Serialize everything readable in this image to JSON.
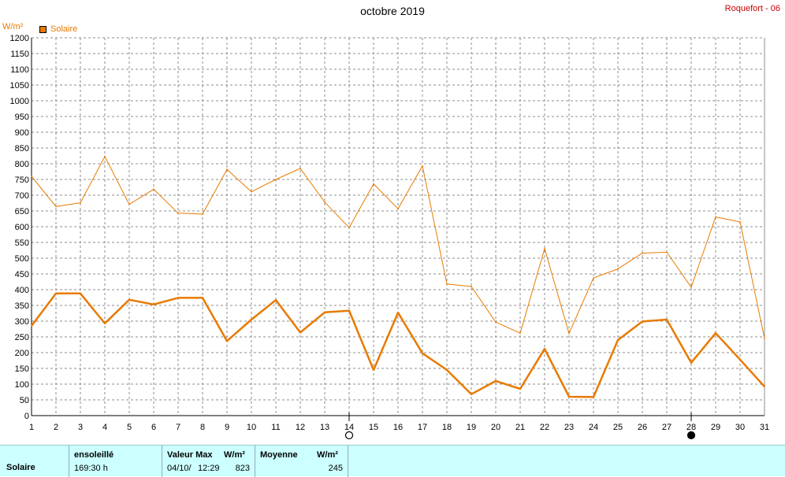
{
  "header": {
    "title": "octobre 2019",
    "station": "Roquefort - 06",
    "unit": "W/m²",
    "legend_label": "Solaire",
    "legend_color": "#e87a00"
  },
  "chart_data": {
    "type": "line",
    "title": "octobre 2019",
    "ylabel": "W/m²",
    "xlabel": "",
    "x": [
      1,
      2,
      3,
      4,
      5,
      6,
      7,
      8,
      9,
      10,
      11,
      12,
      13,
      14,
      15,
      16,
      17,
      18,
      19,
      20,
      21,
      22,
      23,
      24,
      25,
      26,
      27,
      28,
      29,
      30,
      31
    ],
    "ylim": [
      0,
      1200
    ],
    "y_tick_step": 50,
    "grid": true,
    "legend_placement": "top-left",
    "series": [
      {
        "name": "Solaire",
        "style": "max",
        "color": "#e87a00",
        "values": [
          760,
          664,
          676,
          823,
          671,
          719,
          643,
          640,
          782,
          711,
          750,
          785,
          678,
          597,
          736,
          657,
          793,
          418,
          410,
          297,
          262,
          530,
          261,
          437,
          466,
          516,
          519,
          408,
          631,
          615,
          245
        ]
      },
      {
        "name": "Solaire",
        "style": "moyenne",
        "color": "#e87a00",
        "values": [
          285,
          388,
          388,
          293,
          368,
          353,
          374,
          374,
          237,
          305,
          367,
          264,
          328,
          333,
          145,
          327,
          198,
          145,
          68,
          110,
          85,
          212,
          60,
          59,
          240,
          299,
          305,
          168,
          262,
          178,
          92
        ]
      }
    ],
    "markers": [
      {
        "day": 14,
        "symbol": "new-moon-outline"
      },
      {
        "day": 28,
        "symbol": "full-moon-filled"
      }
    ]
  },
  "footer": {
    "row_label": "Solaire",
    "sun_title": "ensoleillé",
    "sun_value": "169:30 h",
    "max_title": "Valeur Max",
    "max_unit": "W/m²",
    "max_date": "04/10/",
    "max_time": "12:29",
    "max_value": "823",
    "avg_title": "Moyenne",
    "avg_unit": "W/m²",
    "avg_value": "245"
  }
}
